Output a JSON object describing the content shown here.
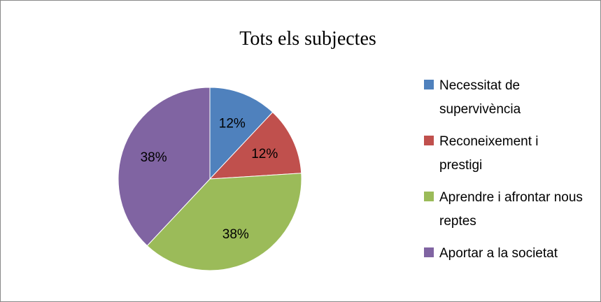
{
  "chart_data": {
    "type": "pie",
    "title": "Tots els subjectes",
    "categories": [
      "Necessitat de supervivència",
      "Reconeixement i prestigi",
      "Aprendre i afrontar nous reptes",
      "Aportar a la societat"
    ],
    "values": [
      12,
      12,
      38,
      38
    ],
    "value_labels": [
      "12%",
      "12%",
      "38%",
      "38%"
    ],
    "colors": [
      "#4f81bd",
      "#c0504d",
      "#9bbb59",
      "#8064a2"
    ],
    "legend": "right"
  }
}
